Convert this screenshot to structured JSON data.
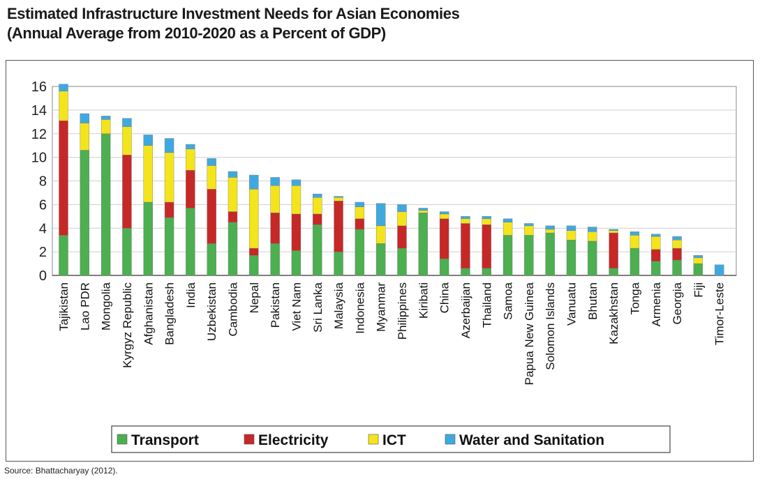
{
  "title_line1": "Estimated Infrastructure Investment Needs for Asian Economies",
  "title_line2": "(Annual Average from 2010-2020 as a Percent of GDP)",
  "source": "Source: Bhattacharyay (2012).",
  "chart_data": {
    "type": "bar",
    "stacked": true,
    "title": "Estimated Infrastructure Investment Needs for Asian Economies (Annual Average from 2010-2020 as a Percent of GDP)",
    "xlabel": "",
    "ylabel": "",
    "ylim": [
      0,
      16
    ],
    "yticks": [
      0,
      2,
      4,
      6,
      8,
      10,
      12,
      14,
      16
    ],
    "grid": true,
    "legend_position": "bottom",
    "categories": [
      "Tajikistan",
      "Lao PDR",
      "Mongolia",
      "Kyrgyz Republic",
      "Afghanistan",
      "Bangladesh",
      "India",
      "Uzbekistan",
      "Cambodia",
      "Nepal",
      "Pakistan",
      "Viet Nam",
      "Sri Lanka",
      "Malaysia",
      "Indonesia",
      "Myanmar",
      "Philippines",
      "Kiribati",
      "China",
      "Azerbaijan",
      "Thailand",
      "Samoa",
      "Papua New Guinea",
      "Solomon Islands",
      "Vanuatu",
      "Bhutan",
      "Kazakhstan",
      "Tonga",
      "Armenia",
      "Georgia",
      "Fiji",
      "Timor-Leste"
    ],
    "series": [
      {
        "name": "Transport",
        "color": "#4caf50",
        "values": [
          3.4,
          10.6,
          12.0,
          4.0,
          6.2,
          4.9,
          5.7,
          2.7,
          4.5,
          1.7,
          2.7,
          2.1,
          4.3,
          2.0,
          3.9,
          2.7,
          2.3,
          5.3,
          1.4,
          0.6,
          0.6,
          3.4,
          3.4,
          3.6,
          3.0,
          2.9,
          0.6,
          2.3,
          1.2,
          1.3,
          1.0,
          0.0
        ]
      },
      {
        "name": "Electricity",
        "color": "#c62828",
        "values": [
          9.7,
          0.0,
          0.0,
          6.2,
          0.0,
          1.3,
          3.2,
          4.6,
          0.9,
          0.6,
          2.6,
          3.1,
          0.9,
          4.3,
          0.9,
          0.0,
          1.9,
          0.0,
          3.4,
          3.8,
          3.7,
          0.0,
          0.0,
          0.0,
          0.0,
          0.0,
          3.0,
          0.0,
          1.0,
          1.0,
          0.0,
          0.0
        ]
      },
      {
        "name": "ICT",
        "color": "#f4e41c",
        "values": [
          2.5,
          2.3,
          1.2,
          2.4,
          4.8,
          4.2,
          1.8,
          2.0,
          2.9,
          5.0,
          2.3,
          2.4,
          1.4,
          0.3,
          1.0,
          1.5,
          1.2,
          0.2,
          0.4,
          0.4,
          0.5,
          1.1,
          0.8,
          0.3,
          0.8,
          0.8,
          0.2,
          1.1,
          1.1,
          0.7,
          0.5,
          0.0
        ]
      },
      {
        "name": "Water and Sanitation",
        "color": "#3fa9df",
        "values": [
          0.6,
          0.8,
          0.3,
          0.7,
          0.9,
          1.2,
          0.4,
          0.6,
          0.5,
          1.2,
          0.7,
          0.5,
          0.3,
          0.1,
          0.4,
          1.9,
          0.6,
          0.2,
          0.2,
          0.2,
          0.2,
          0.3,
          0.2,
          0.3,
          0.4,
          0.4,
          0.1,
          0.3,
          0.2,
          0.3,
          0.2,
          0.9
        ]
      }
    ]
  }
}
